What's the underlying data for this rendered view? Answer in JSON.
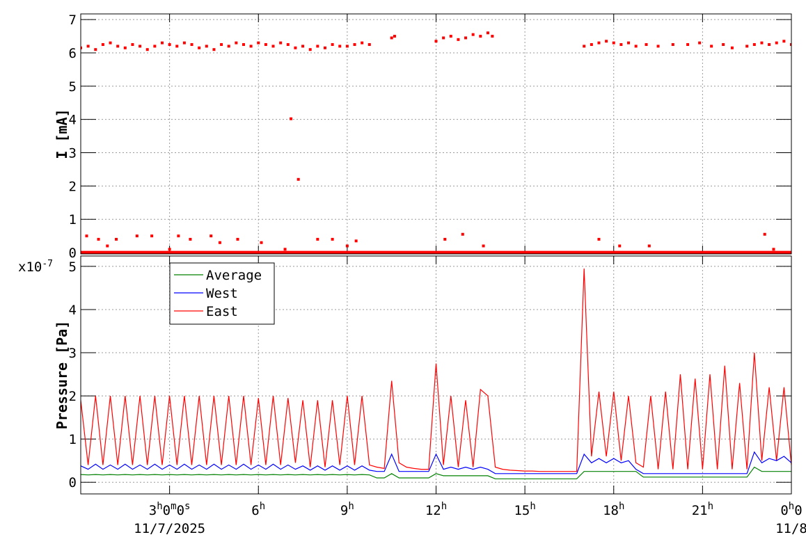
{
  "chart_data": [
    {
      "type": "scatter",
      "y_label": "I [mA]",
      "xlim": [
        0,
        24
      ],
      "ylim": [
        -0.04,
        7.17
      ],
      "xticks": [
        3,
        6,
        9,
        12,
        15,
        18,
        21,
        24
      ],
      "yticks": [
        0,
        1,
        2,
        3,
        4,
        5,
        6,
        7
      ],
      "grid": true,
      "series": [
        {
          "color": "#ff0000",
          "draw": "points",
          "x": [
            0,
            0.25,
            0.5,
            0.75,
            1,
            1.25,
            1.5,
            1.75,
            2,
            2.25,
            2.5,
            2.75,
            3,
            3.25,
            3.5,
            3.75,
            4,
            4.25,
            4.5,
            4.75,
            5,
            5.25,
            5.5,
            5.75,
            6,
            6.25,
            6.5,
            6.75,
            7,
            7.25,
            7.5,
            7.75,
            8,
            8.25,
            8.5,
            8.75,
            9,
            9.25,
            9.5,
            9.75,
            10.5,
            10.6,
            12,
            12.25,
            12.5,
            12.75,
            13,
            13.25,
            13.5,
            13.75,
            13.9,
            17,
            17.25,
            17.5,
            17.75,
            18,
            18.25,
            18.5,
            18.75,
            19.1,
            19.5,
            20,
            20.5,
            20.9,
            21.3,
            21.7,
            22,
            22.5,
            22.75,
            23,
            23.25,
            23.5,
            23.75,
            24,
            0.2,
            0.6,
            0.9,
            1.2,
            1.9,
            2.4,
            3,
            3.3,
            3.7,
            4.4,
            4.7,
            5.3,
            6.1,
            6.9,
            7.1,
            7.35,
            8,
            8.5,
            9,
            9.3,
            12.3,
            12.9,
            13.6,
            17.5,
            18.2,
            19.2,
            23.1,
            23.4
          ],
          "values": [
            6.15,
            6.2,
            6.1,
            6.25,
            6.3,
            6.2,
            6.15,
            6.25,
            6.2,
            6.1,
            6.2,
            6.3,
            6.25,
            6.2,
            6.3,
            6.25,
            6.15,
            6.2,
            6.1,
            6.25,
            6.2,
            6.3,
            6.25,
            6.2,
            6.3,
            6.25,
            6.2,
            6.3,
            6.25,
            6.15,
            6.2,
            6.1,
            6.2,
            6.15,
            6.25,
            6.2,
            6.2,
            6.25,
            6.3,
            6.25,
            6.45,
            6.5,
            6.35,
            6.45,
            6.5,
            6.4,
            6.45,
            6.55,
            6.5,
            6.6,
            6.5,
            6.2,
            6.25,
            6.3,
            6.35,
            6.3,
            6.25,
            6.3,
            6.2,
            6.25,
            6.2,
            6.25,
            6.25,
            6.3,
            6.2,
            6.25,
            6.15,
            6.2,
            6.25,
            6.3,
            6.25,
            6.3,
            6.35,
            6.25,
            0.5,
            0.4,
            0.2,
            0.4,
            0.5,
            0.5,
            0.1,
            0.5,
            0.4,
            0.5,
            0.3,
            0.4,
            0.3,
            0.1,
            4.02,
            2.2,
            0.4,
            0.4,
            0.2,
            0.35,
            0.4,
            0.55,
            0.2,
            0.4,
            0.2,
            0.2,
            0.55,
            0.1
          ]
        },
        {
          "color": "#ff0000",
          "draw": "line",
          "x": [
            0,
            24
          ],
          "values": [
            0,
            0
          ]
        }
      ]
    },
    {
      "type": "line",
      "y_label": "Pressure [Pa]",
      "y_exponent_label": "x10-7",
      "xlim": [
        0,
        24
      ],
      "ylim": [
        -0.27,
        5.24
      ],
      "xticks": [
        {
          "value": 3,
          "label": "3h0m0s"
        },
        {
          "value": 6,
          "label": "6h"
        },
        {
          "value": 9,
          "label": "9h"
        },
        {
          "value": 12,
          "label": "12h"
        },
        {
          "value": 15,
          "label": "15h"
        },
        {
          "value": 18,
          "label": "18h"
        },
        {
          "value": 21,
          "label": "21h"
        },
        {
          "value": 24,
          "label": "0h0"
        }
      ],
      "date_labels": [
        {
          "value": 3,
          "label": "11/7/2025"
        },
        {
          "value": 24,
          "label": "11/8"
        }
      ],
      "yticks": [
        0,
        1,
        2,
        3,
        4,
        5
      ],
      "grid": true,
      "legend": "top-left",
      "x": [
        0,
        0.25,
        0.5,
        0.75,
        1,
        1.25,
        1.5,
        1.75,
        2,
        2.25,
        2.5,
        2.75,
        3,
        3.25,
        3.5,
        3.75,
        4,
        4.25,
        4.5,
        4.75,
        5,
        5.25,
        5.5,
        5.75,
        6,
        6.25,
        6.5,
        6.75,
        7,
        7.25,
        7.5,
        7.75,
        8,
        8.25,
        8.5,
        8.75,
        9,
        9.25,
        9.5,
        9.75,
        10,
        10.25,
        10.5,
        10.75,
        11,
        11.25,
        11.5,
        11.75,
        12,
        12.25,
        12.5,
        12.75,
        13,
        13.25,
        13.5,
        13.75,
        14,
        14.25,
        14.5,
        14.75,
        15,
        15.25,
        15.5,
        15.75,
        16,
        16.25,
        16.5,
        16.75,
        17,
        17.25,
        17.5,
        17.75,
        18,
        18.25,
        18.5,
        18.75,
        19,
        19.25,
        19.5,
        19.75,
        20,
        20.25,
        20.5,
        20.75,
        21,
        21.25,
        21.5,
        21.75,
        22,
        22.25,
        22.5,
        22.75,
        23,
        23.25,
        23.5,
        23.75,
        24
      ],
      "series": [
        {
          "name": "Average",
          "color": "#008000",
          "values": [
            0.18,
            0.17,
            0.18,
            0.17,
            0.18,
            0.17,
            0.18,
            0.17,
            0.18,
            0.17,
            0.18,
            0.17,
            0.18,
            0.17,
            0.18,
            0.17,
            0.18,
            0.17,
            0.18,
            0.17,
            0.18,
            0.17,
            0.18,
            0.17,
            0.18,
            0.17,
            0.18,
            0.17,
            0.18,
            0.17,
            0.18,
            0.17,
            0.18,
            0.17,
            0.18,
            0.17,
            0.18,
            0.17,
            0.18,
            0.17,
            0.1,
            0.1,
            0.2,
            0.1,
            0.1,
            0.1,
            0.1,
            0.1,
            0.2,
            0.15,
            0.15,
            0.15,
            0.15,
            0.15,
            0.15,
            0.15,
            0.08,
            0.08,
            0.08,
            0.08,
            0.08,
            0.08,
            0.08,
            0.08,
            0.08,
            0.08,
            0.08,
            0.08,
            0.25,
            0.25,
            0.25,
            0.25,
            0.25,
            0.25,
            0.25,
            0.25,
            0.12,
            0.12,
            0.12,
            0.12,
            0.12,
            0.12,
            0.12,
            0.12,
            0.12,
            0.12,
            0.12,
            0.12,
            0.12,
            0.12,
            0.12,
            0.35,
            0.25,
            0.25,
            0.25,
            0.25,
            0.25
          ]
        },
        {
          "name": "West",
          "color": "#0000ff",
          "values": [
            0.38,
            0.3,
            0.42,
            0.3,
            0.4,
            0.3,
            0.42,
            0.3,
            0.4,
            0.3,
            0.42,
            0.3,
            0.4,
            0.3,
            0.42,
            0.3,
            0.4,
            0.3,
            0.42,
            0.3,
            0.4,
            0.3,
            0.42,
            0.3,
            0.4,
            0.3,
            0.42,
            0.3,
            0.4,
            0.3,
            0.38,
            0.28,
            0.38,
            0.28,
            0.38,
            0.28,
            0.38,
            0.28,
            0.38,
            0.28,
            0.25,
            0.25,
            0.65,
            0.25,
            0.25,
            0.25,
            0.25,
            0.25,
            0.65,
            0.3,
            0.35,
            0.3,
            0.35,
            0.3,
            0.35,
            0.3,
            0.2,
            0.2,
            0.2,
            0.2,
            0.2,
            0.2,
            0.2,
            0.2,
            0.2,
            0.2,
            0.2,
            0.2,
            0.65,
            0.45,
            0.55,
            0.45,
            0.55,
            0.45,
            0.5,
            0.3,
            0.2,
            0.2,
            0.2,
            0.2,
            0.2,
            0.2,
            0.2,
            0.2,
            0.2,
            0.2,
            0.2,
            0.2,
            0.2,
            0.2,
            0.2,
            0.7,
            0.45,
            0.55,
            0.5,
            0.6,
            0.45
          ]
        },
        {
          "name": "East",
          "color": "#ff0000",
          "values": [
            1.9,
            0.4,
            2.0,
            0.4,
            2.0,
            0.4,
            2.0,
            0.4,
            2.0,
            0.4,
            2.0,
            0.4,
            2.0,
            0.4,
            2.0,
            0.4,
            2.0,
            0.4,
            2.0,
            0.4,
            2.0,
            0.4,
            2.0,
            0.4,
            1.95,
            0.4,
            2.0,
            0.4,
            1.95,
            0.45,
            1.9,
            0.35,
            1.9,
            0.35,
            1.9,
            0.4,
            2.0,
            0.4,
            2.0,
            0.4,
            0.35,
            0.32,
            2.35,
            0.45,
            0.35,
            0.32,
            0.3,
            0.3,
            2.75,
            0.4,
            2.0,
            0.35,
            1.9,
            0.35,
            2.15,
            2.0,
            0.35,
            0.3,
            0.28,
            0.27,
            0.26,
            0.26,
            0.25,
            0.25,
            0.25,
            0.25,
            0.25,
            0.25,
            4.95,
            0.6,
            2.1,
            0.6,
            2.1,
            0.5,
            2.0,
            0.45,
            0.35,
            2.0,
            0.3,
            2.1,
            0.3,
            2.5,
            0.3,
            2.4,
            0.3,
            2.5,
            0.3,
            2.7,
            0.3,
            2.3,
            0.3,
            3.0,
            0.5,
            2.2,
            0.5,
            2.2,
            0.4
          ]
        }
      ]
    }
  ]
}
